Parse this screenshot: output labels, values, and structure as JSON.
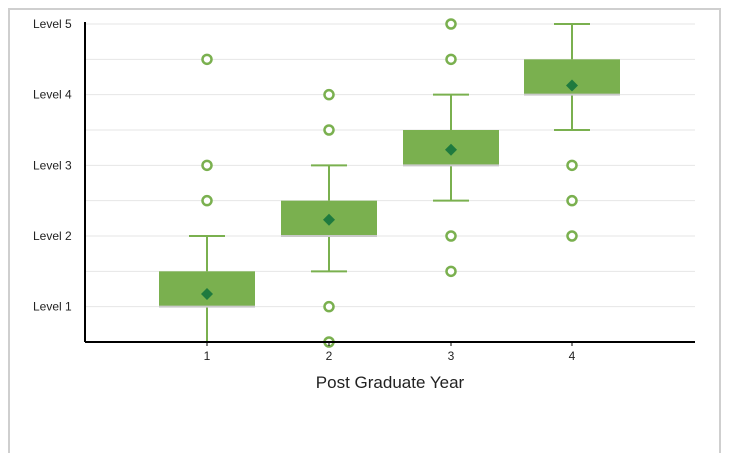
{
  "chart_data": {
    "type": "box",
    "title": "",
    "xlabel": "Post Graduate Year",
    "ylabel": "",
    "categories": [
      "1",
      "2",
      "3",
      "4"
    ],
    "y_tick_labels": [
      "Level 1",
      "Level 2",
      "Level 3",
      "Level 4",
      "Level 5"
    ],
    "y_tick_values": [
      1,
      2,
      3,
      4,
      5
    ],
    "ylim": [
      0.5,
      5
    ],
    "grid": true,
    "boxes": [
      {
        "category": "1",
        "whisker_low": 0.5,
        "q1": 1.0,
        "q3": 1.5,
        "whisker_high": 2.0,
        "mean": 1.18,
        "outliers": [
          2.5,
          3.0,
          4.5
        ]
      },
      {
        "category": "2",
        "whisker_low": 1.5,
        "q1": 2.0,
        "q3": 2.5,
        "whisker_high": 3.0,
        "mean": 2.23,
        "outliers": [
          0.5,
          1.0,
          3.5,
          4.0
        ]
      },
      {
        "category": "3",
        "whisker_low": 2.5,
        "q1": 3.0,
        "q3": 3.5,
        "whisker_high": 4.0,
        "mean": 3.22,
        "outliers": [
          1.5,
          2.0,
          4.5,
          5.0
        ]
      },
      {
        "category": "4",
        "whisker_low": 3.5,
        "q1": 4.0,
        "q3": 4.5,
        "whisker_high": 5.0,
        "mean": 4.13,
        "outliers": [
          2.0,
          2.5,
          3.0
        ]
      }
    ],
    "colors": {
      "box": "#7ab04f",
      "whisker": "#7ab04f",
      "mean": "#1f7a3f",
      "outlier": "#7ab04f",
      "grid": "#e6e6e6",
      "axis": "#000000"
    }
  }
}
